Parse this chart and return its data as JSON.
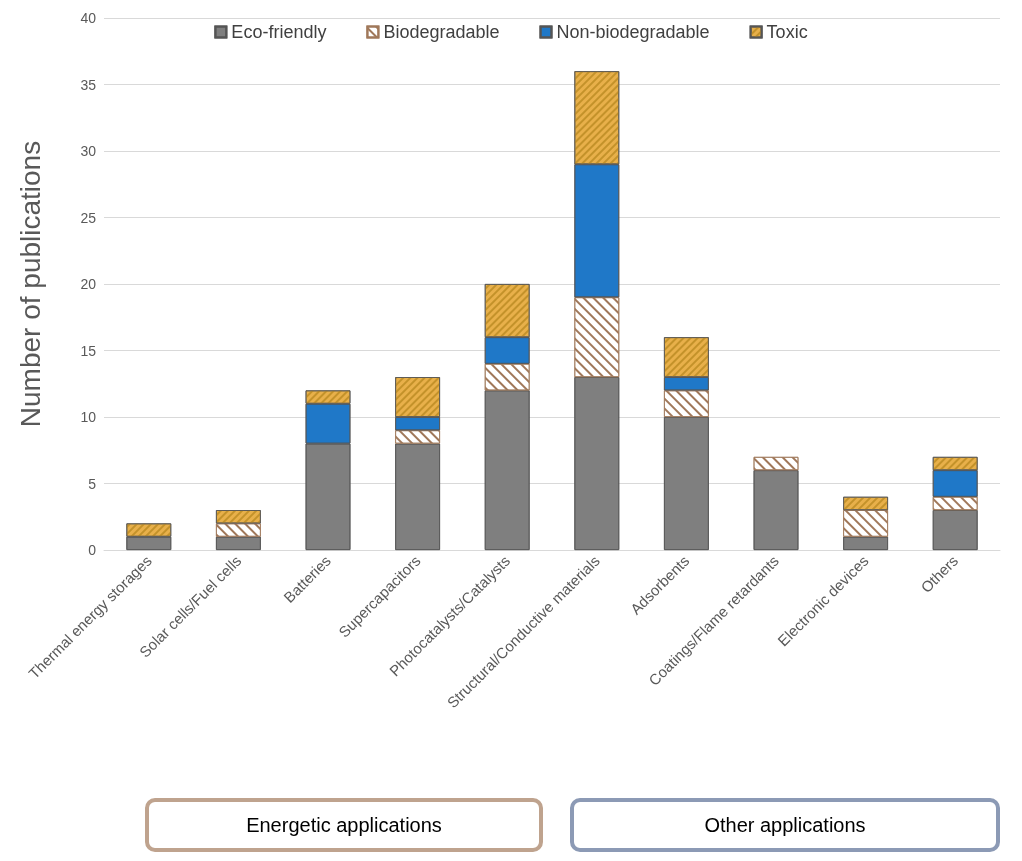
{
  "chart_data": {
    "type": "bar",
    "stacked": true,
    "ylabel": "Number of publications",
    "categories": [
      "Thermal energy storages",
      "Solar cells/Fuel cells",
      "Batteries",
      "Supercapacitors",
      "Photocatalysts/Catalysts",
      "Structural/Conductive materials",
      "Adsorbents",
      "Coatings/Flame retardants",
      "Electronic devices",
      "Others"
    ],
    "series": [
      {
        "name": "Eco-friendly",
        "color": "#7f7f7f",
        "values": [
          1,
          1,
          8,
          8,
          12,
          13,
          10,
          6,
          1,
          3
        ]
      },
      {
        "name": "Biodegradable",
        "color": "#ffffff",
        "values": [
          0,
          1,
          0,
          1,
          2,
          6,
          2,
          1,
          2,
          1
        ]
      },
      {
        "name": "Non-biodegradable",
        "color": "#1f78c8",
        "values": [
          0,
          0,
          3,
          1,
          2,
          10,
          1,
          0,
          0,
          2
        ]
      },
      {
        "name": "Toxic",
        "color": "#e8b04a",
        "values": [
          1,
          1,
          1,
          3,
          4,
          7,
          3,
          0,
          1,
          1
        ]
      }
    ],
    "ylim": [
      0,
      40
    ],
    "yticks": [
      0,
      5,
      10,
      15,
      20,
      25,
      30,
      35,
      40
    ],
    "grid": "y",
    "legend": "top",
    "annotations": [
      "Energetic applications",
      "Other applications"
    ]
  }
}
